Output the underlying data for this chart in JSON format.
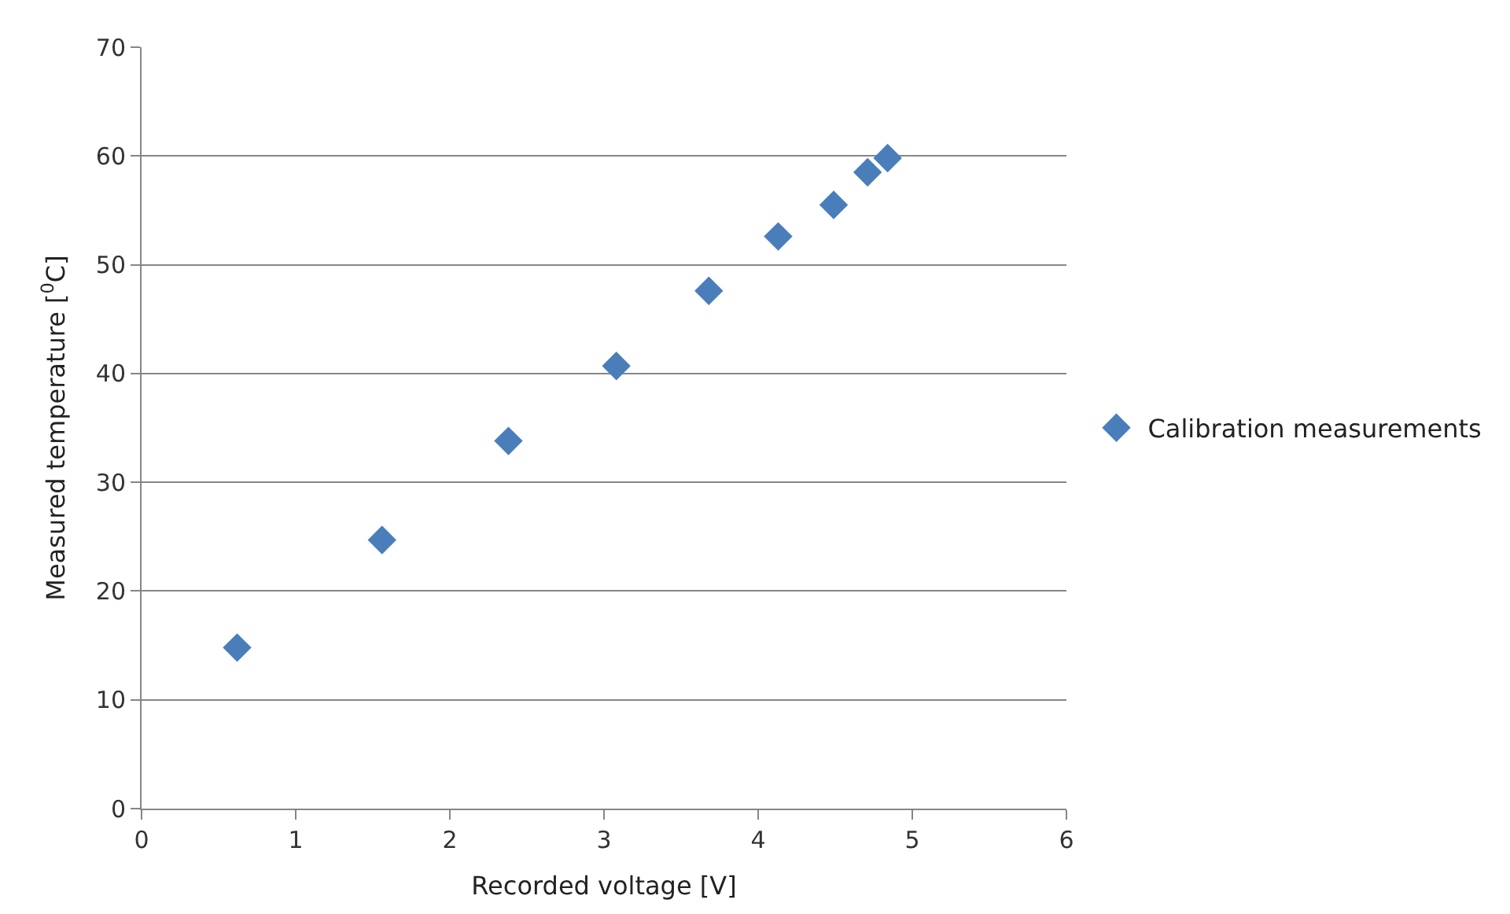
{
  "chart_data": {
    "type": "scatter",
    "xlabel": "Recorded voltage [V]",
    "ylabel": "Measured temperature [$^{0}$C]",
    "x": [
      0.62,
      1.56,
      2.38,
      3.08,
      3.68,
      4.13,
      4.49,
      4.71,
      4.84
    ],
    "series": [
      {
        "name": "Calibration measurements",
        "color": "#4a7ebb",
        "values": [
          14.8,
          24.7,
          33.8,
          40.7,
          47.6,
          52.6,
          55.5,
          58.5,
          59.8
        ]
      }
    ],
    "xlim": [
      0,
      6
    ],
    "xticks": [
      0,
      1,
      2,
      3,
      4,
      5,
      6
    ],
    "ylim": [
      0,
      70
    ],
    "yticks": [
      0,
      10,
      20,
      30,
      40,
      50,
      60,
      70
    ],
    "grid": "y",
    "legend": "right",
    "marker": "diamond"
  }
}
